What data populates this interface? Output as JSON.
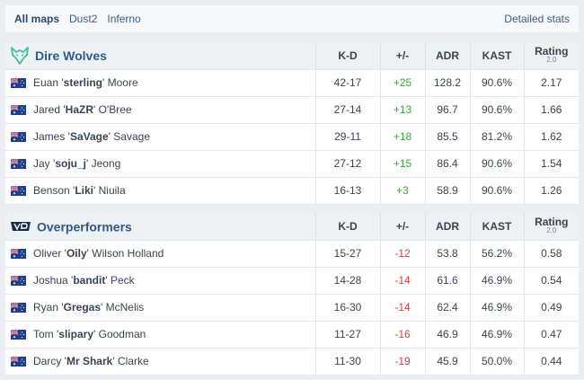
{
  "tabs": [
    {
      "label": "All maps",
      "active": true
    },
    {
      "label": "Dust2",
      "active": false
    },
    {
      "label": "Inferno",
      "active": false
    }
  ],
  "detailed_stats_label": "Detailed stats",
  "columns": {
    "kd": "K-D",
    "pm": "+/-",
    "adr": "ADR",
    "kast": "KAST",
    "rating": "Rating",
    "rating_version": "2.0"
  },
  "colors": {
    "positive": "#3aa53a",
    "negative": "#d33f3f",
    "team_name": "#2d5a8a",
    "dire_wolves_logo": "#3fbf9f"
  },
  "teams": [
    {
      "name": "Dire Wolves",
      "logo_icon": "wolf-icon",
      "players": [
        {
          "first": "Euan '",
          "nick": "sterling",
          "last": "' Moore",
          "kd": "42-17",
          "pm": "+25",
          "adr": "128.2",
          "kast": "90.6%",
          "rating": "2.17",
          "flag": "australia-flag-icon"
        },
        {
          "first": "Jared '",
          "nick": "HaZR",
          "last": "' O'Bree",
          "kd": "27-14",
          "pm": "+13",
          "adr": "96.7",
          "kast": "90.6%",
          "rating": "1.66",
          "flag": "australia-flag-icon"
        },
        {
          "first": "James '",
          "nick": "SaVage",
          "last": "' Savage",
          "kd": "29-11",
          "pm": "+18",
          "adr": "85.5",
          "kast": "81.2%",
          "rating": "1.62",
          "flag": "australia-flag-icon"
        },
        {
          "first": "Jay '",
          "nick": "soju_j",
          "last": "' Jeong",
          "kd": "27-12",
          "pm": "+15",
          "adr": "86.4",
          "kast": "90.6%",
          "rating": "1.54",
          "flag": "australia-flag-icon"
        },
        {
          "first": "Benson '",
          "nick": "Liki",
          "last": "' Niuila",
          "kd": "16-13",
          "pm": "+3",
          "adr": "58.9",
          "kast": "90.6%",
          "rating": "1.26",
          "flag": "australia-flag-icon"
        }
      ]
    },
    {
      "name": "Overperformers",
      "logo_icon": "overperformers-logo-icon",
      "players": [
        {
          "first": "Oliver '",
          "nick": "Oily",
          "last": "' Wilson Holland",
          "kd": "15-27",
          "pm": "-12",
          "adr": "53.8",
          "kast": "56.2%",
          "rating": "0.58",
          "flag": "australia-flag-icon"
        },
        {
          "first": "Joshua '",
          "nick": "bandit",
          "last": "' Peck",
          "kd": "14-28",
          "pm": "-14",
          "adr": "61.6",
          "kast": "46.9%",
          "rating": "0.54",
          "flag": "australia-flag-icon"
        },
        {
          "first": "Ryan '",
          "nick": "Gregas",
          "last": "' McNelis",
          "kd": "16-30",
          "pm": "-14",
          "adr": "62.4",
          "kast": "46.9%",
          "rating": "0.49",
          "flag": "australia-flag-icon"
        },
        {
          "first": "Tom '",
          "nick": "slipary",
          "last": "' Goodman",
          "kd": "11-27",
          "pm": "-16",
          "adr": "46.9",
          "kast": "46.9%",
          "rating": "0.47",
          "flag": "australia-flag-icon"
        },
        {
          "first": "Darcy '",
          "nick": "Mr Shark",
          "last": "' Clarke",
          "kd": "11-30",
          "pm": "-19",
          "adr": "45.9",
          "kast": "50.0%",
          "rating": "0.44",
          "flag": "australia-flag-icon"
        }
      ]
    }
  ]
}
